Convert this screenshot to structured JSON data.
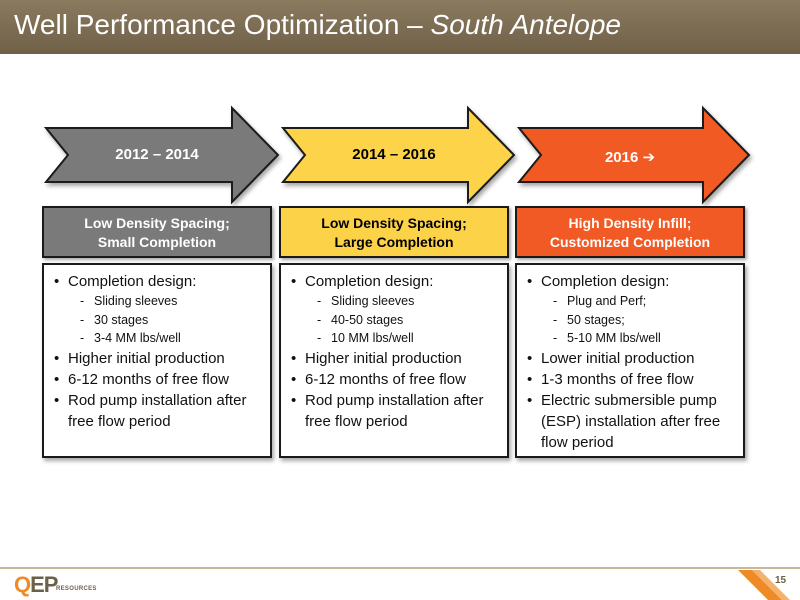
{
  "slide": {
    "title_main": "Well Performance Optimization – ",
    "title_sub": "South Antelope",
    "page_number": "15"
  },
  "phases": [
    {
      "arrow_label": "2012 – 2014",
      "heading_line1": "Low Density Spacing;",
      "heading_line2": "Small Completion",
      "color": "#7a7a7a",
      "bullets": {
        "b1": "Completion design:",
        "subs": [
          "Sliding sleeves",
          "30 stages",
          "3-4 MM lbs/well"
        ],
        "b2": "Higher initial production",
        "b3": "6-12 months of free flow",
        "b4": "Rod pump installation after free flow period"
      }
    },
    {
      "arrow_label": "2014 – 2016",
      "heading_line1": "Low Density Spacing;",
      "heading_line2": "Large Completion",
      "color": "#fcd348",
      "bullets": {
        "b1": "Completion design:",
        "subs": [
          "Sliding sleeves",
          "40-50 stages",
          "10 MM lbs/well"
        ],
        "b2": "Higher initial production",
        "b3": "6-12 months of free flow",
        "b4": "Rod pump installation after free flow period"
      }
    },
    {
      "arrow_label": "2016 ➔",
      "heading_line1": "High Density Infill;",
      "heading_line2": "Customized Completion",
      "color": "#f15a24",
      "bullets": {
        "b1": "Completion design:",
        "subs": [
          "Plug and Perf;",
          "50 stages;",
          "5-10 MM lbs/well"
        ],
        "b2": "Lower initial production",
        "b3": "1-3 months of free flow",
        "b4": "Electric submersible pump (ESP) installation after free flow period"
      }
    }
  ],
  "logo": {
    "main_q": "Q",
    "main_rest": "EP",
    "sub": "RESOURCES"
  }
}
